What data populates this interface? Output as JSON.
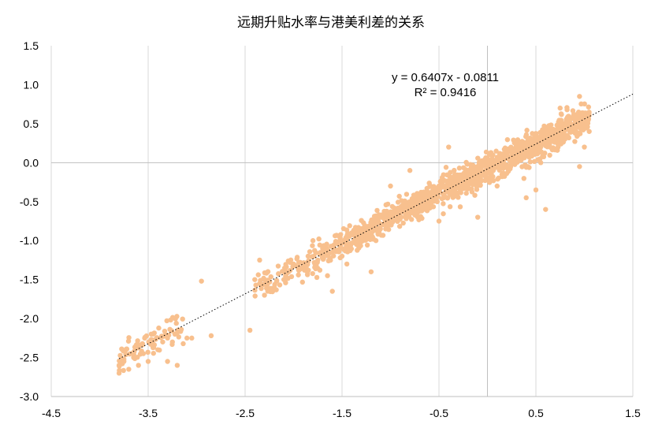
{
  "chart_data": {
    "type": "scatter",
    "title": "远期升贴水率与港美利差的关系",
    "xlabel": "",
    "ylabel": "",
    "xlim": [
      -4.5,
      1.5
    ],
    "ylim": [
      -3.0,
      1.5
    ],
    "x_ticks": [
      "-4.5",
      "-3.5",
      "-2.5",
      "-1.5",
      "-0.5",
      "0.5",
      "1.5"
    ],
    "y_ticks": [
      "1.5",
      "1.0",
      "0.5",
      "0.0",
      "-0.5",
      "-1.0",
      "-1.5",
      "-2.0",
      "-2.5",
      "-3.0"
    ],
    "grid": "vertical",
    "point_color": "#F8C08E",
    "trendline": {
      "slope": 0.6407,
      "intercept": -0.0811,
      "x_range": [
        -3.8,
        1.5
      ],
      "style": "dotted",
      "equation_label": "y = 0.6407x - 0.0811",
      "r2_label": "R² = 0.9416"
    },
    "series": [
      {
        "points": [
          [
            -3.8,
            -2.6
          ],
          [
            -3.75,
            -2.55
          ],
          [
            -3.7,
            -2.65
          ],
          [
            -3.65,
            -2.5
          ],
          [
            -3.6,
            -2.6
          ],
          [
            -3.55,
            -2.45
          ],
          [
            -3.5,
            -2.55
          ],
          [
            -3.45,
            -2.35
          ],
          [
            -3.4,
            -2.4
          ],
          [
            -3.35,
            -2.3
          ],
          [
            -3.3,
            -2.25
          ],
          [
            -3.25,
            -2.3
          ],
          [
            -3.3,
            -2.55
          ],
          [
            -3.2,
            -2.6
          ],
          [
            -3.1,
            -2.25
          ],
          [
            -3.05,
            -2.25
          ],
          [
            -2.85,
            -2.22
          ],
          [
            -2.95,
            -1.52
          ],
          [
            -2.45,
            -2.15
          ],
          [
            -3.8,
            -2.7
          ],
          [
            -2.4,
            -1.5
          ],
          [
            -2.35,
            -1.55
          ],
          [
            -2.3,
            -1.7
          ],
          [
            -2.2,
            -1.6
          ],
          [
            -2.1,
            -1.5
          ],
          [
            -2.05,
            -1.4
          ],
          [
            -2.0,
            -1.3
          ],
          [
            -1.95,
            -1.35
          ],
          [
            -1.9,
            -1.3
          ],
          [
            -1.85,
            -1.2
          ],
          [
            -1.8,
            -1.0
          ],
          [
            -1.75,
            -1.25
          ],
          [
            -1.7,
            -1.1
          ],
          [
            -1.65,
            -1.45
          ],
          [
            -1.6,
            -1.15
          ],
          [
            -1.5,
            -1.2
          ],
          [
            -1.45,
            -1.3
          ],
          [
            -1.4,
            -0.9
          ],
          [
            -1.35,
            -1.05
          ],
          [
            -1.3,
            -0.85
          ],
          [
            -1.25,
            -0.95
          ],
          [
            -1.2,
            -0.8
          ],
          [
            -1.15,
            -1.0
          ],
          [
            -1.1,
            -0.7
          ],
          [
            -1.05,
            -0.85
          ],
          [
            -1.0,
            -0.75
          ],
          [
            -0.95,
            -0.6
          ],
          [
            -0.9,
            -0.65
          ],
          [
            -0.85,
            -0.55
          ],
          [
            -0.8,
            -0.5
          ],
          [
            -0.75,
            -0.6
          ],
          [
            -0.7,
            -0.45
          ],
          [
            -0.65,
            -0.4
          ],
          [
            -0.6,
            -0.5
          ],
          [
            -0.55,
            -0.35
          ],
          [
            -0.5,
            -0.3
          ],
          [
            -0.45,
            -0.4
          ],
          [
            -0.4,
            -0.25
          ],
          [
            -0.35,
            -0.2
          ],
          [
            -0.3,
            -0.3
          ],
          [
            -0.25,
            -0.15
          ],
          [
            -0.2,
            -0.1
          ],
          [
            -0.15,
            -0.2
          ],
          [
            -0.1,
            -0.05
          ],
          [
            -0.05,
            0.0
          ],
          [
            0.0,
            -0.1
          ],
          [
            0.05,
            0.05
          ],
          [
            0.1,
            0.0
          ],
          [
            0.15,
            -0.15
          ],
          [
            0.2,
            0.1
          ],
          [
            0.25,
            0.05
          ],
          [
            0.3,
            0.15
          ],
          [
            0.35,
            0.2
          ],
          [
            0.4,
            0.1
          ],
          [
            0.45,
            0.25
          ],
          [
            0.5,
            0.3
          ],
          [
            0.55,
            0.2
          ],
          [
            0.6,
            0.35
          ],
          [
            0.65,
            0.4
          ],
          [
            0.7,
            0.3
          ],
          [
            0.75,
            0.45
          ],
          [
            0.8,
            0.5
          ],
          [
            0.85,
            0.4
          ],
          [
            0.9,
            0.55
          ],
          [
            0.95,
            0.5
          ],
          [
            1.0,
            0.45
          ],
          [
            1.05,
            0.4
          ],
          [
            0.95,
            0.85
          ],
          [
            0.75,
            0.7
          ],
          [
            1.0,
            0.2
          ],
          [
            0.55,
            -0.0
          ],
          [
            0.6,
            -0.6
          ],
          [
            0.4,
            -0.45
          ],
          [
            0.1,
            -0.3
          ],
          [
            -0.1,
            -0.7
          ],
          [
            -0.5,
            -0.75
          ],
          [
            -1.0,
            -0.3
          ],
          [
            -1.2,
            -1.4
          ],
          [
            -1.6,
            -1.65
          ],
          [
            -2.35,
            -1.25
          ],
          [
            -0.8,
            -0.1
          ],
          [
            -0.4,
            0.2
          ],
          [
            0.5,
            -0.35
          ],
          [
            0.95,
            -0.05
          ]
        ]
      }
    ]
  }
}
